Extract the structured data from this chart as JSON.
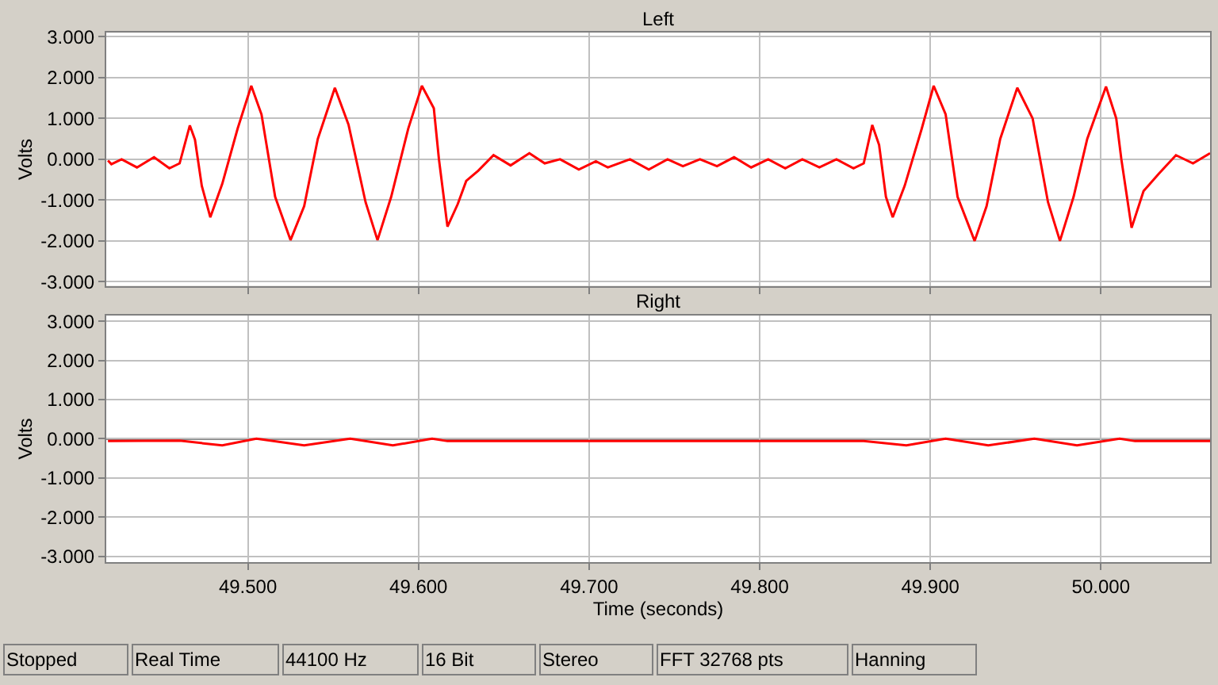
{
  "chart_data": [
    {
      "type": "line",
      "title": "Left",
      "ylabel": "Volts",
      "tick_labels": "y",
      "grid": true,
      "marker": "none",
      "line_style": "solid",
      "xlim": [
        49.417,
        50.064
      ],
      "xticks": [
        {
          "value": 49.5,
          "label": null
        },
        {
          "value": 49.6,
          "label": null
        },
        {
          "value": 49.7,
          "label": null
        },
        {
          "value": 49.8,
          "label": null
        },
        {
          "value": 49.9,
          "label": null
        },
        {
          "value": 50.0,
          "label": null
        }
      ],
      "ylim": [
        -3.1,
        3.1
      ],
      "yticks": [
        {
          "value": 3,
          "label": "3.000"
        },
        {
          "value": 2,
          "label": "2.000"
        },
        {
          "value": 1,
          "label": "1.000"
        },
        {
          "value": 0,
          "label": "0.000"
        },
        {
          "value": -1,
          "label": "-1.000"
        },
        {
          "value": -2,
          "label": "-2.000"
        },
        {
          "value": -3,
          "label": "-3.000"
        }
      ],
      "series": [
        {
          "color": "#ff0000",
          "x": [
            49.418,
            49.42,
            49.426,
            49.435,
            49.445,
            49.454,
            49.46,
            49.466,
            49.469,
            49.473,
            49.478,
            49.485,
            49.494,
            49.502,
            49.508,
            49.516,
            49.525,
            49.533,
            49.541,
            49.551,
            49.559,
            49.569,
            49.576,
            49.584,
            49.594,
            49.602,
            49.609,
            49.612,
            49.617,
            49.623,
            49.628,
            49.635,
            49.644,
            49.654,
            49.665,
            49.674,
            49.683,
            49.694,
            49.704,
            49.711,
            49.724,
            49.735,
            49.746,
            49.755,
            49.765,
            49.775,
            49.785,
            49.795,
            49.805,
            49.815,
            49.825,
            49.835,
            49.845,
            49.855,
            49.861,
            49.866,
            49.87,
            49.874,
            49.878,
            49.885,
            49.895,
            49.902,
            49.909,
            49.916,
            49.926,
            49.933,
            49.941,
            49.951,
            49.96,
            49.969,
            49.976,
            49.984,
            49.992,
            50.003,
            50.009,
            50.012,
            50.018,
            50.025,
            50.034,
            50.044,
            50.054,
            50.064
          ],
          "values": [
            -0.03,
            -0.12,
            0.0,
            -0.2,
            0.05,
            -0.22,
            -0.1,
            0.83,
            0.48,
            -0.65,
            -1.42,
            -0.6,
            0.75,
            1.8,
            1.1,
            -0.92,
            -1.98,
            -1.15,
            0.5,
            1.75,
            0.85,
            -1.05,
            -1.98,
            -0.92,
            0.75,
            1.8,
            1.25,
            0.0,
            -1.65,
            -1.1,
            -0.53,
            -0.28,
            0.1,
            -0.15,
            0.15,
            -0.1,
            0.0,
            -0.25,
            -0.05,
            -0.2,
            0.0,
            -0.25,
            0.0,
            -0.17,
            0.0,
            -0.17,
            0.05,
            -0.2,
            0.0,
            -0.22,
            0.0,
            -0.2,
            0.0,
            -0.22,
            -0.1,
            0.84,
            0.35,
            -0.92,
            -1.42,
            -0.65,
            0.75,
            1.8,
            1.1,
            -0.92,
            -2.0,
            -1.15,
            0.5,
            1.75,
            1.0,
            -1.05,
            -2.0,
            -0.92,
            0.5,
            1.78,
            1.0,
            0.0,
            -1.68,
            -0.78,
            -0.35,
            0.1,
            -0.1,
            0.15
          ]
        }
      ]
    },
    {
      "type": "line",
      "title": "Right",
      "xlabel": "Time (seconds)",
      "ylabel": "Volts",
      "grid": true,
      "marker": "none",
      "line_style": "solid",
      "xlim": [
        49.417,
        50.064
      ],
      "xticks": [
        {
          "value": 49.5,
          "label": "49.500"
        },
        {
          "value": 49.6,
          "label": "49.600"
        },
        {
          "value": 49.7,
          "label": "49.700"
        },
        {
          "value": 49.8,
          "label": "49.800"
        },
        {
          "value": 49.9,
          "label": "49.900"
        },
        {
          "value": 50.0,
          "label": "50.000"
        }
      ],
      "ylim": [
        -3.15,
        3.15
      ],
      "yticks": [
        {
          "value": 3,
          "label": "3.000"
        },
        {
          "value": 2,
          "label": "2.000"
        },
        {
          "value": 1,
          "label": "1.000"
        },
        {
          "value": 0,
          "label": "0.000"
        },
        {
          "value": -1,
          "label": "-1.000"
        },
        {
          "value": -2,
          "label": "-2.000"
        },
        {
          "value": -3,
          "label": "-3.000"
        }
      ],
      "ref_lines": [
        {
          "axis": "y",
          "value": 0,
          "color": "#000000"
        }
      ],
      "series": [
        {
          "color": "#ff0000",
          "x": [
            49.418,
            49.46,
            49.485,
            49.505,
            49.533,
            49.56,
            49.585,
            49.608,
            49.617,
            49.861,
            49.886,
            49.909,
            49.934,
            49.961,
            49.986,
            50.011,
            50.02,
            50.064
          ],
          "values": [
            -0.06,
            -0.05,
            -0.17,
            0.0,
            -0.17,
            0.0,
            -0.17,
            0.0,
            -0.06,
            -0.06,
            -0.17,
            0.0,
            -0.17,
            0.0,
            -0.17,
            0.0,
            -0.06,
            -0.06
          ]
        }
      ],
      "annotations": [
        "Stopped",
        "Real Time",
        "44100 Hz",
        "16 Bit",
        "Stereo",
        "FFT 32768 pts",
        "Hanning"
      ]
    }
  ]
}
